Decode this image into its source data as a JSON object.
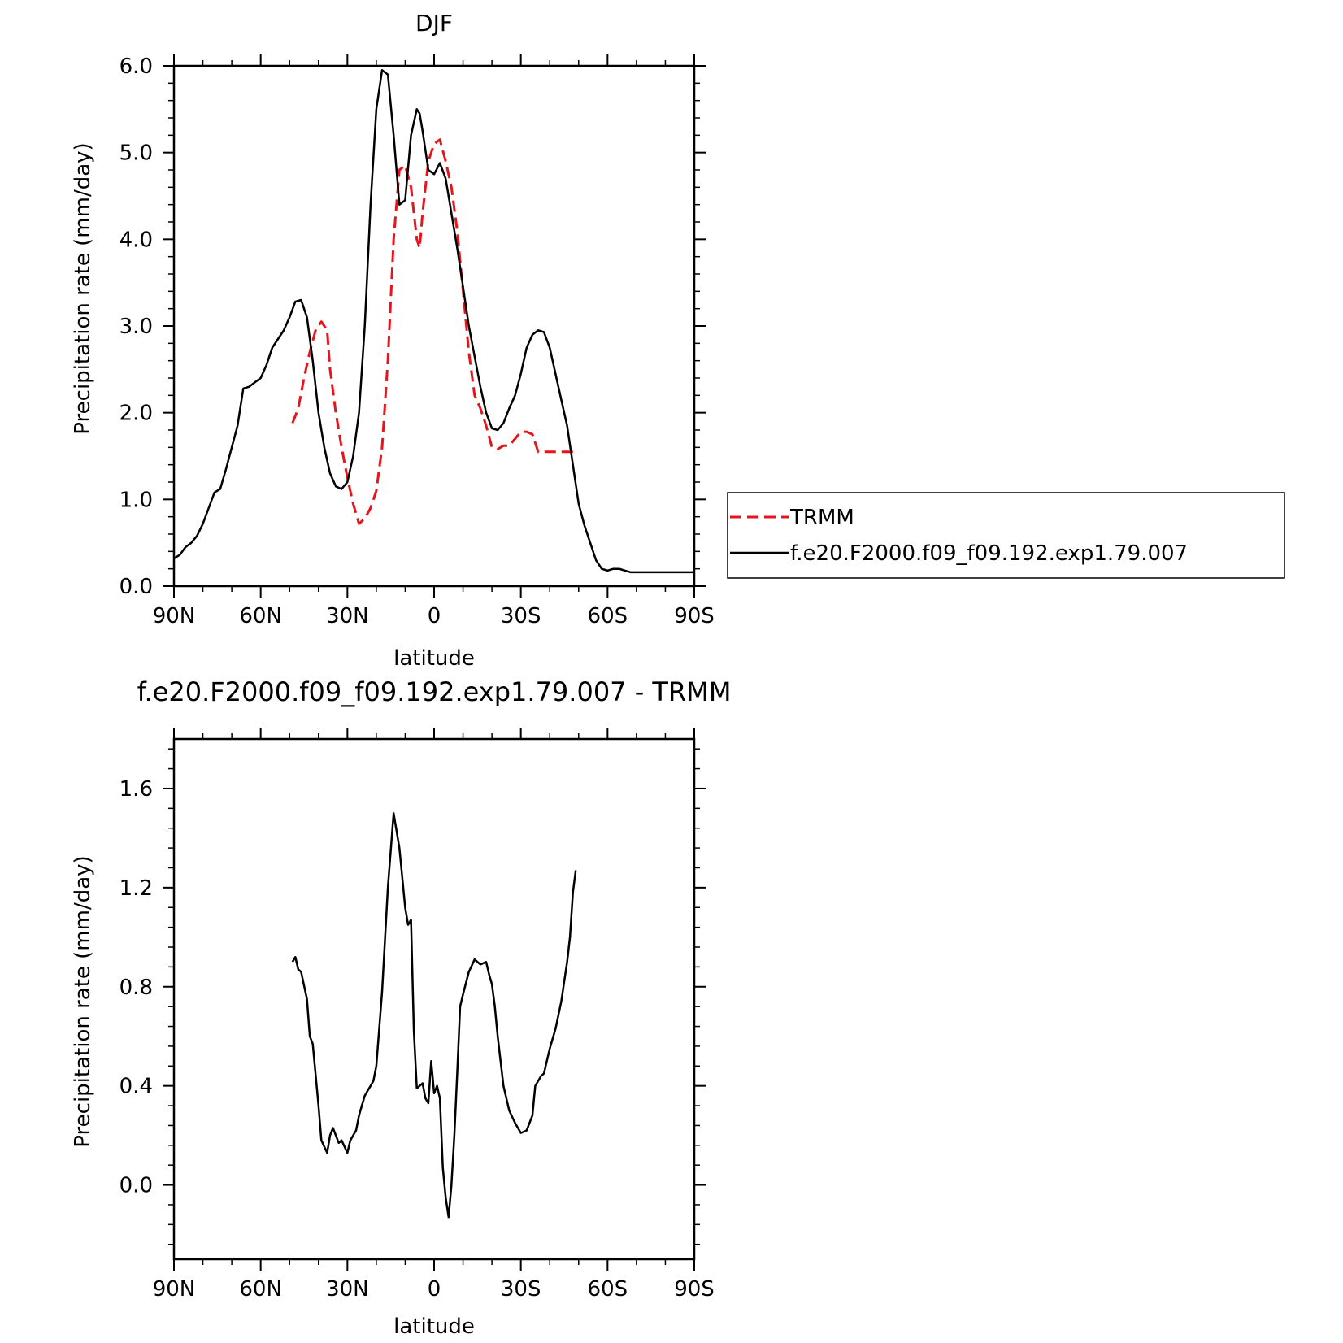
{
  "chart_data": [
    {
      "type": "line",
      "title": "DJF",
      "xlabel": "latitude",
      "ylabel": "Precipitation rate (mm/day)",
      "xlim": [
        90,
        -90
      ],
      "ylim": [
        0,
        6
      ],
      "x_ticks": [
        {
          "value": 90,
          "label": "90N"
        },
        {
          "value": 60,
          "label": "60N"
        },
        {
          "value": 30,
          "label": "30N"
        },
        {
          "value": 0,
          "label": "0"
        },
        {
          "value": -30,
          "label": "30S"
        },
        {
          "value": -60,
          "label": "60S"
        },
        {
          "value": -90,
          "label": "90S"
        }
      ],
      "y_ticks": [
        {
          "value": 0,
          "label": "0.0"
        },
        {
          "value": 1,
          "label": "1.0"
        },
        {
          "value": 2,
          "label": "2.0"
        },
        {
          "value": 3,
          "label": "3.0"
        },
        {
          "value": 4,
          "label": "4.0"
        },
        {
          "value": 5,
          "label": "5.0"
        },
        {
          "value": 6,
          "label": "6.0"
        }
      ],
      "legend": {
        "position": "right"
      },
      "series": [
        {
          "name": "TRMM",
          "color": "#e8141b",
          "dash": true,
          "x": [
            49,
            47,
            45,
            43,
            41,
            39,
            37,
            36,
            34,
            32,
            30,
            28,
            26,
            24,
            22,
            20,
            18,
            16,
            14,
            12,
            10,
            8,
            6,
            5,
            4,
            2,
            0,
            -2,
            -4,
            -6,
            -8,
            -10,
            -12,
            -14,
            -16,
            -18,
            -20,
            -22,
            -24,
            -26,
            -28,
            -30,
            -32,
            -34,
            -36,
            -38,
            -40,
            -42,
            -44,
            -46,
            -48,
            -49
          ],
          "y": [
            1.88,
            2.05,
            2.4,
            2.7,
            2.95,
            3.05,
            2.95,
            2.5,
            2.0,
            1.6,
            1.25,
            0.95,
            0.72,
            0.78,
            0.9,
            1.1,
            1.6,
            2.6,
            4.0,
            4.8,
            4.85,
            4.6,
            4.0,
            3.9,
            4.3,
            4.9,
            5.1,
            5.15,
            4.9,
            4.6,
            4.1,
            3.4,
            2.7,
            2.2,
            2.05,
            1.85,
            1.6,
            1.58,
            1.62,
            1.62,
            1.7,
            1.78,
            1.78,
            1.75,
            1.55,
            1.55,
            1.55,
            1.55,
            1.55,
            1.55,
            1.55,
            1.55
          ]
        },
        {
          "name": "f.e20.F2000.f09_f09.192.exp1.79.007",
          "color": "#000000",
          "dash": false,
          "x": [
            90,
            88,
            86,
            84,
            82,
            80,
            78,
            76,
            74,
            72,
            70,
            68,
            66,
            64,
            62,
            60,
            58,
            56,
            54,
            52,
            50,
            48,
            46,
            44,
            42,
            40,
            38,
            36,
            34,
            32,
            30,
            28,
            26,
            24,
            22,
            20,
            18,
            16,
            14,
            12,
            10,
            8,
            6,
            5,
            4,
            2,
            0,
            -2,
            -4,
            -6,
            -8,
            -10,
            -12,
            -14,
            -16,
            -18,
            -20,
            -22,
            -24,
            -26,
            -28,
            -30,
            -32,
            -34,
            -36,
            -38,
            -40,
            -42,
            -44,
            -46,
            -48,
            -50,
            -52,
            -54,
            -56,
            -58,
            -60,
            -62,
            -64,
            -66,
            -68,
            -70,
            -72,
            -74,
            -76,
            -78,
            -80,
            -82,
            -84,
            -86,
            -88,
            -90
          ],
          "y": [
            0.32,
            0.36,
            0.45,
            0.5,
            0.58,
            0.72,
            0.9,
            1.08,
            1.12,
            1.35,
            1.6,
            1.85,
            2.28,
            2.3,
            2.35,
            2.4,
            2.55,
            2.75,
            2.85,
            2.95,
            3.1,
            3.28,
            3.3,
            3.1,
            2.6,
            2.0,
            1.6,
            1.3,
            1.15,
            1.12,
            1.2,
            1.5,
            2.0,
            3.0,
            4.4,
            5.5,
            5.95,
            5.9,
            5.2,
            4.4,
            4.45,
            5.2,
            5.5,
            5.45,
            5.25,
            4.8,
            4.75,
            4.88,
            4.7,
            4.3,
            3.9,
            3.45,
            3.0,
            2.65,
            2.3,
            2.0,
            1.82,
            1.8,
            1.88,
            2.05,
            2.2,
            2.45,
            2.75,
            2.9,
            2.95,
            2.93,
            2.75,
            2.45,
            2.15,
            1.85,
            1.4,
            0.95,
            0.7,
            0.5,
            0.3,
            0.2,
            0.18,
            0.2,
            0.2,
            0.18,
            0.16,
            0.16,
            0.16,
            0.16,
            0.16,
            0.16,
            0.16,
            0.16,
            0.16,
            0.16,
            0.16,
            0.16
          ]
        }
      ]
    },
    {
      "type": "line",
      "title": "f.e20.F2000.f09_f09.192.exp1.79.007 - TRMM",
      "xlabel": "latitude",
      "ylabel": "Precipitation rate (mm/day)",
      "xlim": [
        90,
        -90
      ],
      "ylim": [
        -0.3,
        1.8
      ],
      "x_ticks": [
        {
          "value": 90,
          "label": "90N"
        },
        {
          "value": 60,
          "label": "60N"
        },
        {
          "value": 30,
          "label": "30N"
        },
        {
          "value": 0,
          "label": "0"
        },
        {
          "value": -30,
          "label": "30S"
        },
        {
          "value": -60,
          "label": "60S"
        },
        {
          "value": -90,
          "label": "90S"
        }
      ],
      "y_ticks": [
        {
          "value": 0,
          "label": "0.0"
        },
        {
          "value": 0.4,
          "label": "0.4"
        },
        {
          "value": 0.8,
          "label": "0.8"
        },
        {
          "value": 1.2,
          "label": "1.2"
        },
        {
          "value": 1.6,
          "label": "1.6"
        }
      ],
      "series": [
        {
          "name": "",
          "color": "#000000",
          "dash": false,
          "x": [
            49,
            48,
            47,
            46,
            44,
            43,
            42,
            40,
            39,
            37,
            36,
            35,
            34,
            33,
            32,
            30,
            29,
            28,
            27,
            26,
            25,
            24,
            23,
            22,
            21,
            20,
            18,
            16,
            14,
            12,
            10,
            9,
            8,
            7,
            6,
            5,
            4,
            3,
            2,
            1,
            0,
            -1,
            -2,
            -3,
            -4,
            -5,
            -6,
            -7,
            -8,
            -9,
            -10,
            -12,
            -14,
            -16,
            -18,
            -19,
            -20,
            -21,
            -22,
            -24,
            -26,
            -28,
            -30,
            -32,
            -34,
            -35,
            -36,
            -37,
            -38,
            -40,
            -42,
            -44,
            -46,
            -47,
            -48,
            -49
          ],
          "y": [
            0.9,
            0.92,
            0.87,
            0.86,
            0.75,
            0.6,
            0.57,
            0.32,
            0.18,
            0.13,
            0.2,
            0.23,
            0.2,
            0.17,
            0.18,
            0.13,
            0.18,
            0.2,
            0.22,
            0.28,
            0.32,
            0.36,
            0.38,
            0.4,
            0.42,
            0.48,
            0.78,
            1.2,
            1.5,
            1.36,
            1.12,
            1.05,
            1.07,
            0.62,
            0.39,
            0.4,
            0.41,
            0.35,
            0.33,
            0.5,
            0.37,
            0.4,
            0.35,
            0.07,
            -0.05,
            -0.13,
            0.0,
            0.2,
            0.45,
            0.72,
            0.77,
            0.86,
            0.91,
            0.89,
            0.9,
            0.85,
            0.81,
            0.72,
            0.6,
            0.4,
            0.3,
            0.25,
            0.21,
            0.22,
            0.28,
            0.4,
            0.42,
            0.44,
            0.45,
            0.55,
            0.63,
            0.74,
            0.9,
            1.0,
            1.18,
            1.27
          ]
        }
      ]
    }
  ]
}
